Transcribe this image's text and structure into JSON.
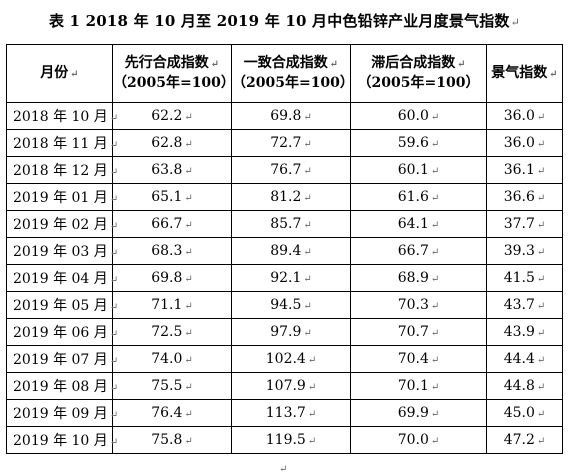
{
  "title": "表 1  2018 年 10 月至 2019 年 10 月中色铅锌产业月度景气指数",
  "columns": [
    {
      "line1": "月份",
      "line2": ""
    },
    {
      "line1": "先行合成指数",
      "line2": "（2005年=100）"
    },
    {
      "line1": "一致合成指数",
      "line2": "（2005年=100）"
    },
    {
      "line1": "滞后合成指数",
      "line2": "（2005年=100）"
    },
    {
      "line1": "景气指数",
      "line2": ""
    }
  ],
  "rows": [
    {
      "month": "2018 年 10 月",
      "leading": "62.2",
      "coincident": "69.8",
      "lagging": "60.0",
      "climate": "36.0"
    },
    {
      "month": "2018 年 11 月",
      "leading": "62.8",
      "coincident": "72.7",
      "lagging": "59.6",
      "climate": "36.0"
    },
    {
      "month": "2018 年 12 月",
      "leading": "63.8",
      "coincident": "76.7",
      "lagging": "60.1",
      "climate": "36.1"
    },
    {
      "month": "2019 年 01 月",
      "leading": "65.1",
      "coincident": "81.2",
      "lagging": "61.6",
      "climate": "36.6"
    },
    {
      "month": "2019 年 02 月",
      "leading": "66.7",
      "coincident": "85.7",
      "lagging": "64.1",
      "climate": "37.7"
    },
    {
      "month": "2019 年 03 月",
      "leading": "68.3",
      "coincident": "89.4",
      "lagging": "66.7",
      "climate": "39.3"
    },
    {
      "month": "2019 年 04 月",
      "leading": "69.8",
      "coincident": "92.1",
      "lagging": "68.9",
      "climate": "41.5"
    },
    {
      "month": "2019 年 05 月",
      "leading": "71.1",
      "coincident": "94.5",
      "lagging": "70.3",
      "climate": "43.7"
    },
    {
      "month": "2019 年 06 月",
      "leading": "72.5",
      "coincident": "97.9",
      "lagging": "70.7",
      "climate": "43.9"
    },
    {
      "month": "2019 年 07 月",
      "leading": "74.0",
      "coincident": "102.4",
      "lagging": "70.4",
      "climate": "44.4"
    },
    {
      "month": "2019 年 08 月",
      "leading": "75.5",
      "coincident": "107.9",
      "lagging": "70.1",
      "climate": "44.8"
    },
    {
      "month": "2019 年 09 月",
      "leading": "76.4",
      "coincident": "113.7",
      "lagging": "69.9",
      "climate": "45.0"
    },
    {
      "month": "2019 年 10 月",
      "leading": "75.8",
      "coincident": "119.5",
      "lagging": "70.0",
      "climate": "47.2"
    }
  ],
  "icons": {
    "paragraph_mark": "↵"
  }
}
